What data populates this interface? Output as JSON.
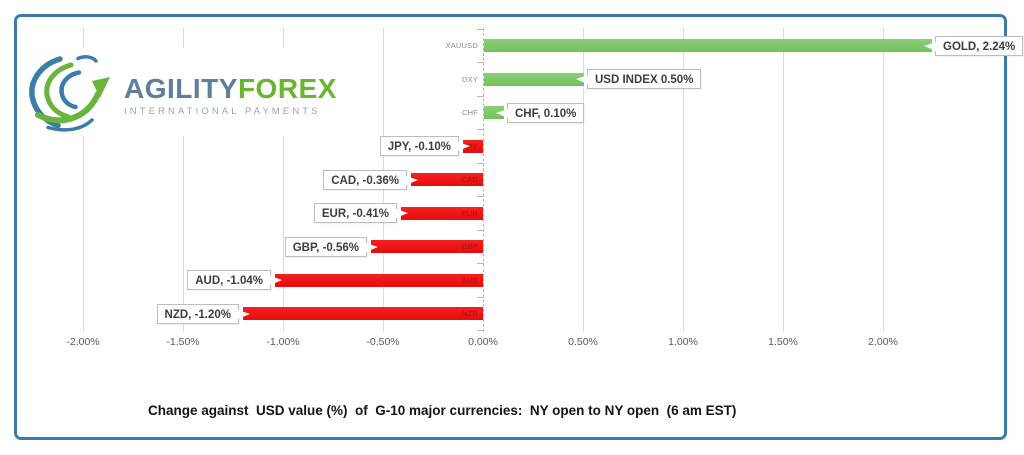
{
  "logo": {
    "brand_primary": "AGILITY",
    "brand_secondary": "FOREX",
    "tagline": "INTERNATIONAL PAYMENTS",
    "colors": {
      "primary_text": "#5e7e9b",
      "secondary_text": "#6ab42e",
      "globe_blue": "#3c7ca8",
      "globe_green": "#6ab33c"
    }
  },
  "chart_data": {
    "type": "bar",
    "orientation": "horizontal",
    "title": "Change against  USD value (%)  of  G-10 major currencies:  NY open to NY open  (6 am EST)",
    "unit": "%",
    "grid": true,
    "legend": false,
    "axis_range": [
      -2.0,
      2.5
    ],
    "tick_values": [
      -2.0,
      -1.5,
      -1.0,
      -0.5,
      0.0,
      0.5,
      1.0,
      1.5,
      2.0
    ],
    "tick_labels": [
      "-2.00%",
      "-1.50%",
      "-1.00%",
      "-0.50%",
      "0.00%",
      "0.50%",
      "1.00%",
      "1.50%",
      "2.00%"
    ],
    "bars": [
      {
        "category": "XAUUSD",
        "value": 2.24,
        "label": "GOLD, 2.24%"
      },
      {
        "category": "DXY",
        "value": 0.5,
        "label": "USD INDEX 0.50%"
      },
      {
        "category": "CHF",
        "value": 0.1,
        "label": "CHF, 0.10%"
      },
      {
        "category": "JPY",
        "value": -0.1,
        "label": "JPY, -0.10%"
      },
      {
        "category": "CAD",
        "value": -0.36,
        "label": "CAD, -0.36%"
      },
      {
        "category": "EUR",
        "value": -0.41,
        "label": "EUR, -0.41%"
      },
      {
        "category": "GBP",
        "value": -0.56,
        "label": "GBP, -0.56%"
      },
      {
        "category": "AUD",
        "value": -1.04,
        "label": "AUD, -1.04%"
      },
      {
        "category": "NZD",
        "value": -1.2,
        "label": "NZD, -1.20%"
      }
    ],
    "colors": {
      "positive": "#77c361",
      "negative": "#ee1414",
      "grid": "#dcdcdc",
      "axis": "#b5b5b5"
    }
  }
}
